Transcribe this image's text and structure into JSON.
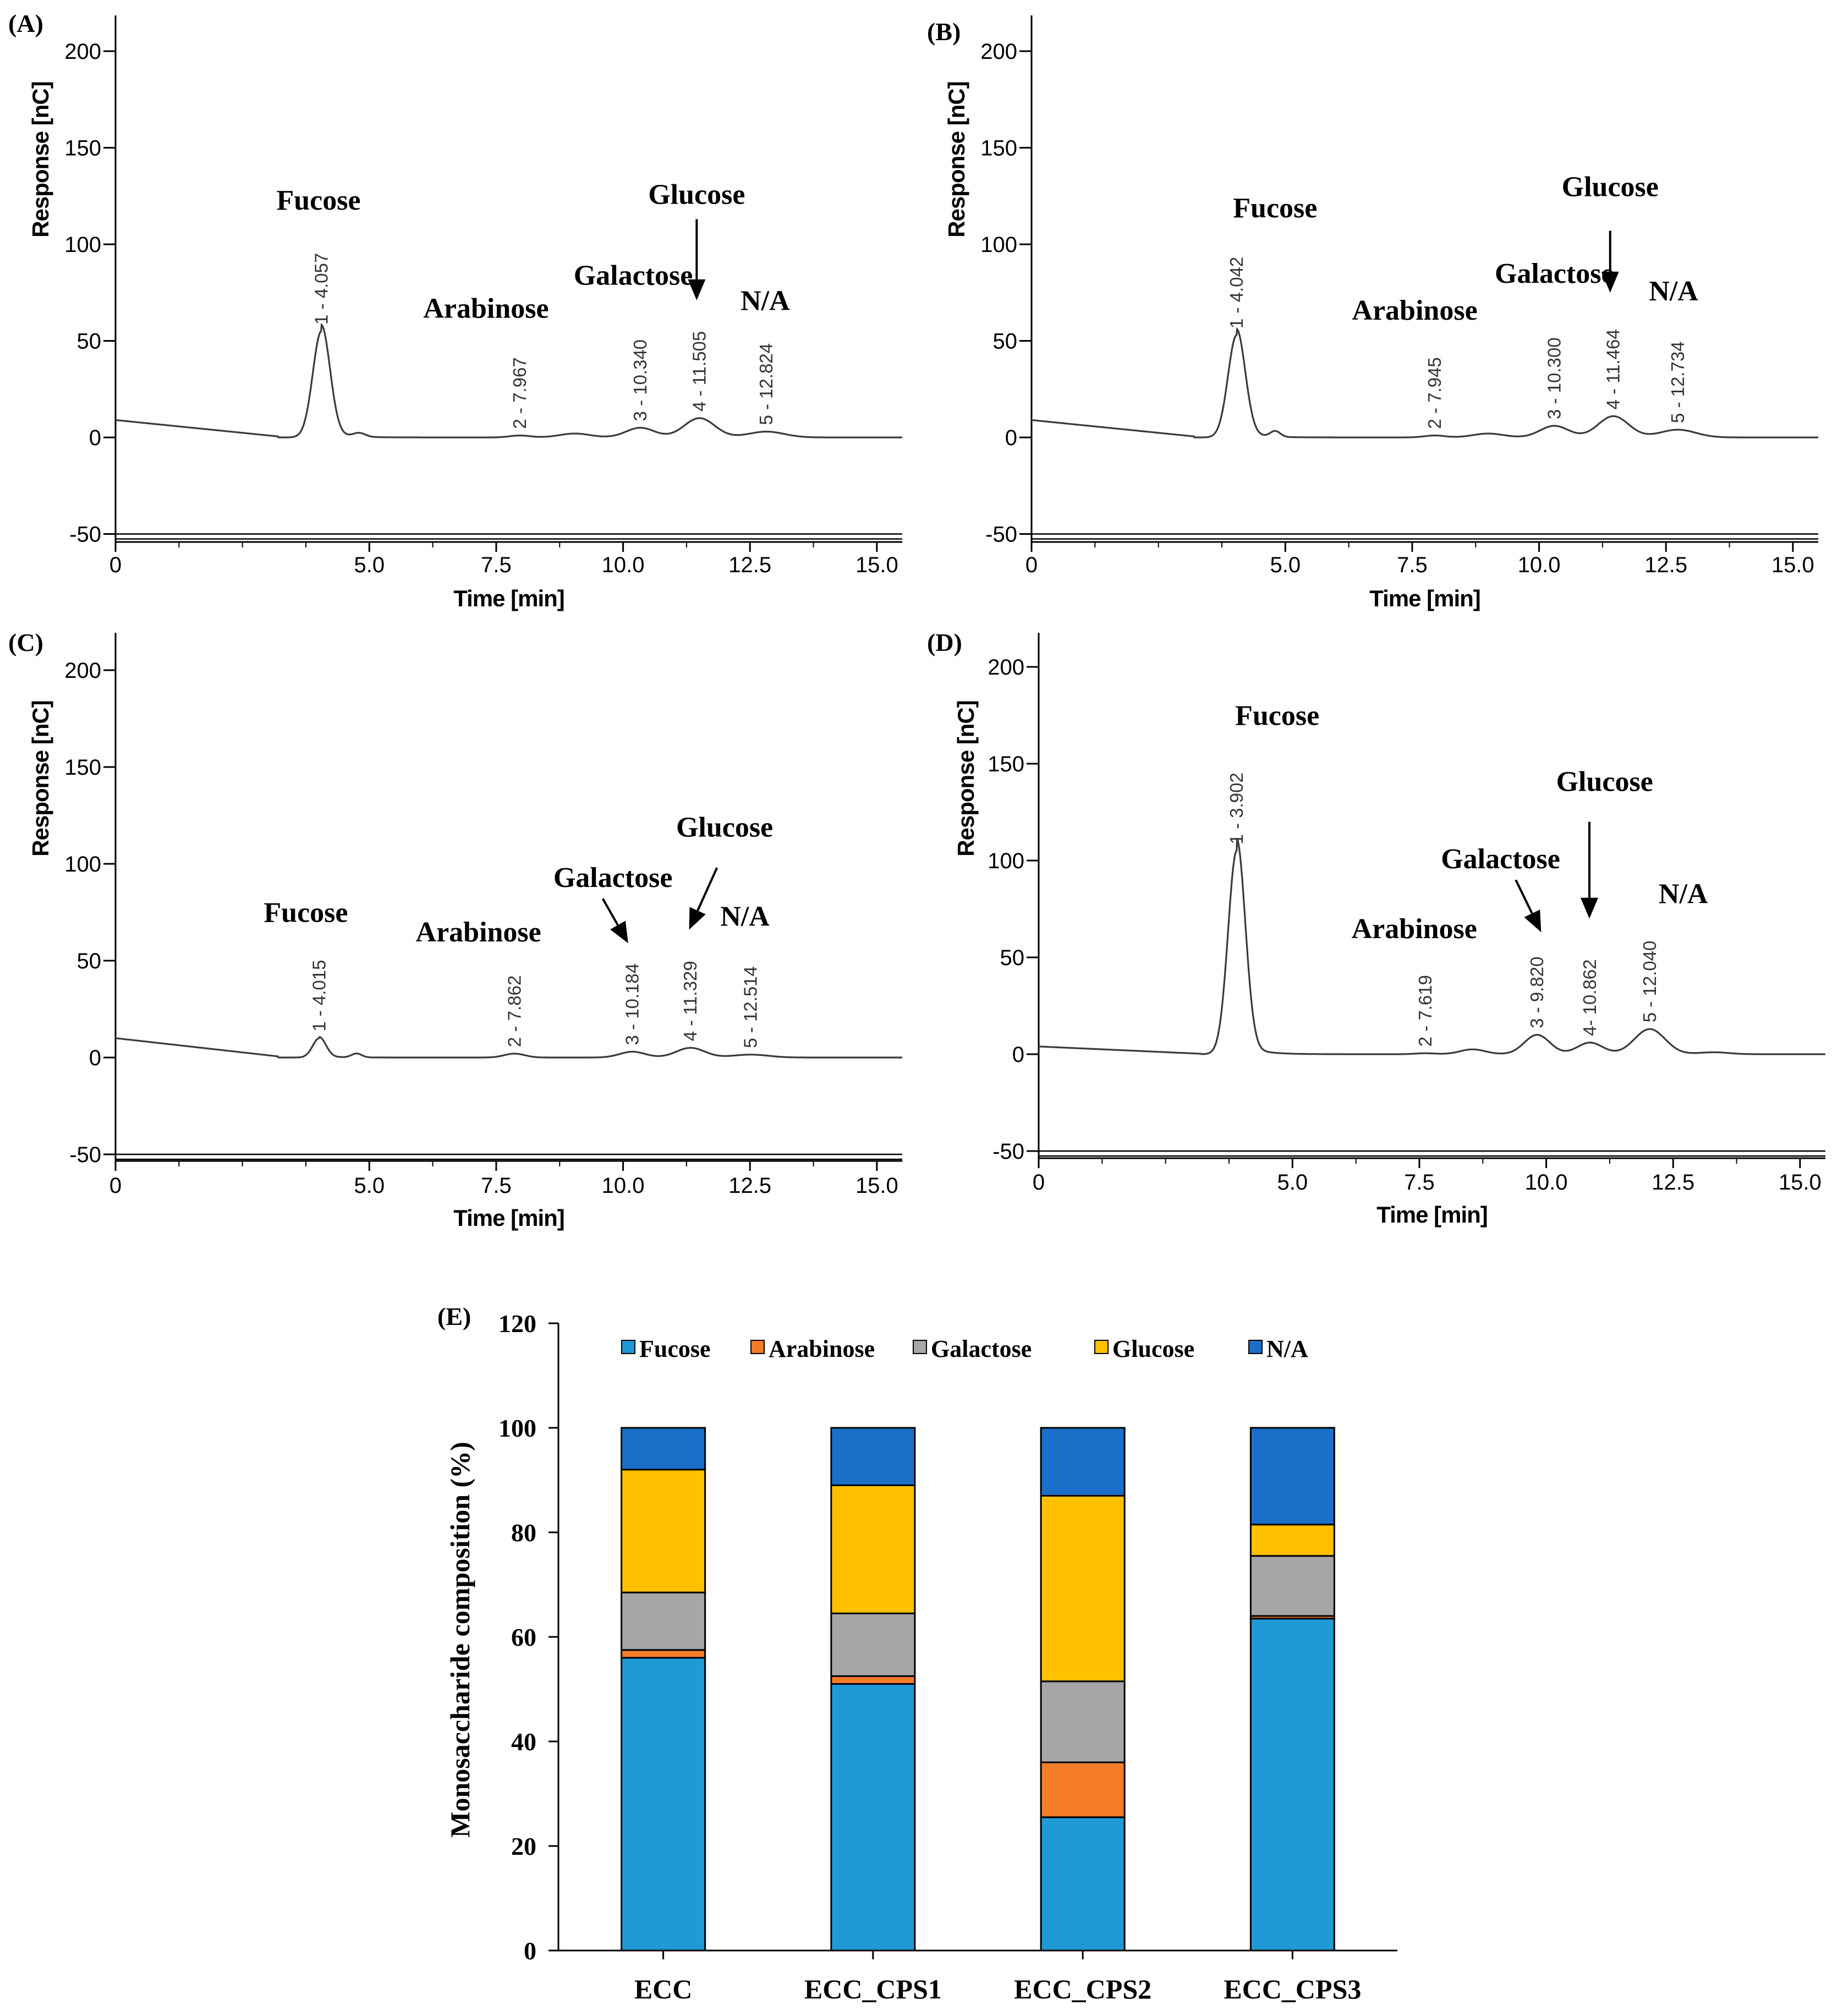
{
  "figure": {
    "colors": {
      "trace": "#3a3a3a",
      "axis": "#000000",
      "Fucose": "#1f9ad6",
      "Arabinose": "#f47c28",
      "Galactose": "#a6a6a6",
      "Glucose": "#ffc000",
      "N/A": "#1a6fc9"
    }
  },
  "chart_data": [
    {
      "type": "line",
      "panel": "(A)",
      "xlabel": "Time [min]",
      "ylabel": "Response [nC]",
      "xlim": [
        0,
        15.5
      ],
      "ylim": [
        -50,
        220
      ],
      "xticks": [
        "0",
        "5.0",
        "7.5",
        "10.0",
        "12.5",
        "15.0"
      ],
      "yticks": [
        "-50",
        "0",
        "50",
        "100",
        "150",
        "200"
      ],
      "baseline_start": 9,
      "peaks": [
        {
          "t": 4.057,
          "h": 55,
          "w": 0.17,
          "id": "1 - 4.057"
        },
        {
          "t": 7.967,
          "h": 1,
          "w": 0.2,
          "id": "2 - 7.967"
        },
        {
          "t": 10.34,
          "h": 5,
          "w": 0.28,
          "id": "3 - 10.340"
        },
        {
          "t": 11.505,
          "h": 10,
          "w": 0.3,
          "id": "4 - 11.505"
        },
        {
          "t": 12.824,
          "h": 3,
          "w": 0.35,
          "id": "5 - 12.824"
        }
      ],
      "minor_peaks": [
        {
          "t": 4.8,
          "h": 2,
          "w": 0.12
        },
        {
          "t": 9.05,
          "h": 2,
          "w": 0.3
        }
      ],
      "annotations": [
        {
          "text": "Fucose",
          "t": 4.0,
          "v": 118
        },
        {
          "text": "Arabinose",
          "t": 7.3,
          "v": 62
        },
        {
          "text": "Galactose",
          "t": 10.2,
          "v": 79
        },
        {
          "text": "Glucose",
          "t": 11.45,
          "v": 121,
          "arrow_from": [
            11.45,
            113
          ],
          "arrow_to": [
            11.45,
            71
          ]
        },
        {
          "text": "N/A",
          "t": 12.8,
          "v": 66
        }
      ]
    },
    {
      "type": "line",
      "panel": "(B)",
      "xlabel": "Time [min]",
      "ylabel": "Response [nC]",
      "xlim": [
        0,
        15.5
      ],
      "ylim": [
        -50,
        220
      ],
      "xticks": [
        "0",
        "5.0",
        "7.5",
        "10.0",
        "12.5",
        "15.0"
      ],
      "yticks": [
        "-50",
        "0",
        "50",
        "100",
        "150",
        "200"
      ],
      "baseline_start": 9,
      "peaks": [
        {
          "t": 4.042,
          "h": 53,
          "w": 0.17,
          "id": "1 - 4.042"
        },
        {
          "t": 7.945,
          "h": 1,
          "w": 0.2,
          "id": "2 - 7.945"
        },
        {
          "t": 10.3,
          "h": 6,
          "w": 0.28,
          "id": "3 - 10.300"
        },
        {
          "t": 11.464,
          "h": 11,
          "w": 0.3,
          "id": "4 - 11.464"
        },
        {
          "t": 12.734,
          "h": 4,
          "w": 0.35,
          "id": "5 - 12.734"
        }
      ],
      "minor_peaks": [
        {
          "t": 4.8,
          "h": 3,
          "w": 0.1
        },
        {
          "t": 9.0,
          "h": 2,
          "w": 0.3
        }
      ],
      "annotations": [
        {
          "text": "Fucose",
          "t": 4.8,
          "v": 114
        },
        {
          "text": "Arabinose",
          "t": 7.55,
          "v": 61
        },
        {
          "text": "Galactose",
          "t": 10.3,
          "v": 80
        },
        {
          "text": "Glucose",
          "t": 11.4,
          "v": 125,
          "arrow_from": [
            11.4,
            107
          ],
          "arrow_to": [
            11.4,
            75
          ]
        },
        {
          "text": "N/A",
          "t": 12.65,
          "v": 71
        }
      ]
    },
    {
      "type": "line",
      "panel": "(C)",
      "xlabel": "Time [min]",
      "ylabel": "Response [nC]",
      "xlim": [
        0,
        15.5
      ],
      "ylim": [
        -50,
        220
      ],
      "xticks": [
        "0",
        "5.0",
        "7.5",
        "10.0",
        "12.5",
        "15.0"
      ],
      "yticks": [
        "-50",
        "0",
        "50",
        "100",
        "150",
        "200"
      ],
      "baseline_start": 10,
      "peaks": [
        {
          "t": 4.015,
          "h": 10,
          "w": 0.13,
          "id": "1 - 4.015"
        },
        {
          "t": 7.862,
          "h": 2,
          "w": 0.2,
          "id": "2 - 7.862"
        },
        {
          "t": 10.184,
          "h": 3,
          "w": 0.25,
          "id": "3 - 10.184"
        },
        {
          "t": 11.329,
          "h": 5,
          "w": 0.28,
          "id": "4 - 11.329"
        },
        {
          "t": 12.514,
          "h": 1.5,
          "w": 0.35,
          "id": "5 - 12.514"
        }
      ],
      "minor_peaks": [
        {
          "t": 4.75,
          "h": 2,
          "w": 0.1
        }
      ],
      "annotations": [
        {
          "text": "Fucose",
          "t": 3.75,
          "v": 70
        },
        {
          "text": "Arabinose",
          "t": 7.15,
          "v": 60
        },
        {
          "text": "Galactose",
          "t": 9.8,
          "v": 88
        },
        {
          "text": "Glucose",
          "t": 12.0,
          "v": 114,
          "arrow_from": [
            11.85,
            98
          ],
          "arrow_to": [
            11.3,
            66
          ]
        },
        {
          "text": "N/A",
          "t": 12.4,
          "v": 68
        },
        {
          "text": "",
          "arrow_from": [
            9.6,
            82
          ],
          "arrow_to": [
            10.1,
            59
          ]
        }
      ]
    },
    {
      "type": "line",
      "panel": "(D)",
      "xlabel": "Time [min]",
      "ylabel": "Response [nC]",
      "xlim": [
        0,
        15.5
      ],
      "ylim": [
        -50,
        220
      ],
      "xticks": [
        "0",
        "5.0",
        "7.5",
        "10.0",
        "12.5",
        "15.0"
      ],
      "yticks": [
        "-50",
        "0",
        "50",
        "100",
        "150",
        "200"
      ],
      "baseline_start": 4,
      "peaks": [
        {
          "t": 3.902,
          "h": 105,
          "w": 0.17,
          "id": "1 - 3.902"
        },
        {
          "t": 7.619,
          "h": 0.5,
          "w": 0.2,
          "id": "2 - 7.619"
        },
        {
          "t": 9.82,
          "h": 10,
          "w": 0.25,
          "id": "3 - 9.820"
        },
        {
          "t": 10.862,
          "h": 6,
          "w": 0.25,
          "id": "4- 10.862"
        },
        {
          "t": 12.04,
          "h": 13,
          "w": 0.3,
          "id": "5 - 12.040"
        }
      ],
      "minor_peaks": [
        {
          "t": 8.55,
          "h": 2.5,
          "w": 0.25
        },
        {
          "t": 13.3,
          "h": 1,
          "w": 0.3
        }
      ],
      "annotations": [
        {
          "text": "Fucose",
          "t": 4.7,
          "v": 170
        },
        {
          "text": "Arabinose",
          "t": 7.4,
          "v": 60
        },
        {
          "text": "Galactose",
          "t": 9.1,
          "v": 96
        },
        {
          "text": "Glucose",
          "t": 11.15,
          "v": 136,
          "arrow_from": [
            10.85,
            120
          ],
          "arrow_to": [
            10.85,
            70
          ]
        },
        {
          "text": "N/A",
          "t": 12.7,
          "v": 78
        },
        {
          "text": "",
          "arrow_from": [
            9.4,
            90
          ],
          "arrow_to": [
            9.9,
            63
          ]
        }
      ]
    },
    {
      "type": "stacked_bar",
      "panel": "(E)",
      "ylabel": "Monosaccharide composition (%)",
      "ylim": [
        0,
        120
      ],
      "yticks": [
        "0",
        "20",
        "40",
        "60",
        "80",
        "100",
        "120"
      ],
      "categories": [
        "ECC",
        "ECC_CPS1",
        "ECC_CPS2",
        "ECC_CPS3"
      ],
      "series": [
        {
          "name": "Fucose",
          "values": [
            56,
            51,
            25.5,
            63.5
          ]
        },
        {
          "name": "Arabinose",
          "values": [
            1.5,
            1.5,
            10.5,
            0.5
          ]
        },
        {
          "name": "Galactose",
          "values": [
            11,
            12,
            15.5,
            11.5
          ]
        },
        {
          "name": "Glucose",
          "values": [
            23.5,
            24.5,
            35.5,
            6
          ]
        },
        {
          "name": "N/A",
          "values": [
            8,
            11,
            13,
            18.5
          ]
        }
      ],
      "legend": [
        "Fucose",
        "Arabinose",
        "Galactose",
        "Glucose",
        "N/A"
      ]
    }
  ]
}
